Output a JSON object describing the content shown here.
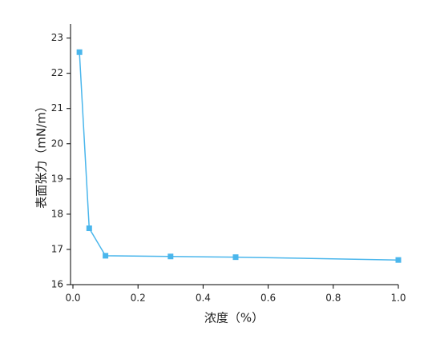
{
  "chart_data": {
    "type": "line",
    "x_label": "浓度（%）",
    "y_label": "表面张力（mN/m）",
    "x": [
      0.02,
      0.05,
      0.1,
      0.3,
      0.5,
      1.0
    ],
    "series": [
      {
        "color": "#4ab6ec",
        "values": [
          22.6,
          17.6,
          16.82,
          16.8,
          16.78,
          16.7
        ]
      }
    ],
    "xlim": [
      -0.0074,
      1.0
    ],
    "xticks": [
      {
        "value": 0,
        "label": "0.0"
      },
      0.2,
      0.4,
      0.6,
      0.8,
      {
        "value": 1,
        "label": "1.0"
      }
    ],
    "ylim": [
      16,
      23.4
    ],
    "yticks": [
      16,
      17,
      18,
      19,
      20,
      21,
      22,
      23
    ],
    "marker": "square"
  }
}
